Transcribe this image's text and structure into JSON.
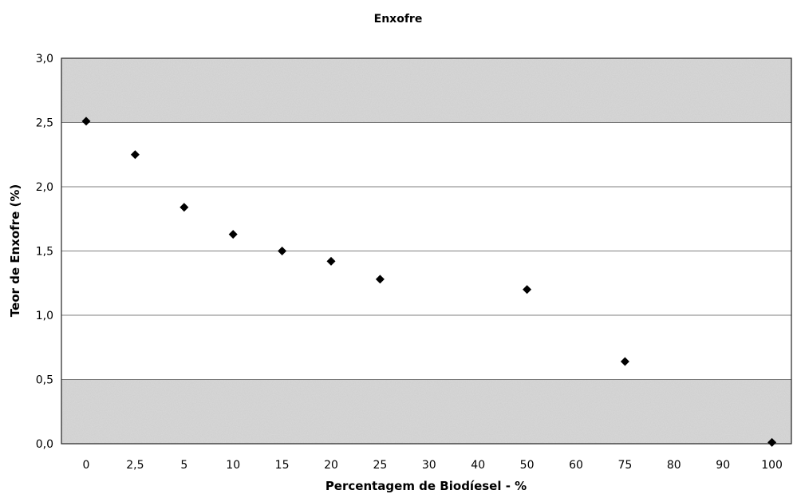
{
  "chart_data": {
    "type": "scatter",
    "title": "Enxofre",
    "xlabel": "Percentagem de Biodíesel - %",
    "ylabel": "Teor de Enxofre (%)",
    "categories": [
      "0",
      "2,5",
      "5",
      "10",
      "15",
      "20",
      "25",
      "30",
      "40",
      "50",
      "60",
      "75",
      "80",
      "90",
      "100"
    ],
    "y_ticks": [
      "0,0",
      "0,5",
      "1,0",
      "1,5",
      "2,0",
      "2,5",
      "3,0"
    ],
    "ylim": [
      0,
      3.0
    ],
    "grid": true,
    "series": [
      {
        "points": [
          {
            "x": "0",
            "y": 2.51
          },
          {
            "x": "2,5",
            "y": 2.25
          },
          {
            "x": "5",
            "y": 1.84
          },
          {
            "x": "10",
            "y": 1.63
          },
          {
            "x": "15",
            "y": 1.5
          },
          {
            "x": "20",
            "y": 1.42
          },
          {
            "x": "25",
            "y": 1.28
          },
          {
            "x": "50",
            "y": 1.2
          },
          {
            "x": "75",
            "y": 0.64
          },
          {
            "x": "100",
            "y": 0.01
          }
        ]
      }
    ],
    "colors": {
      "marker": "#000000",
      "band": "#d9d9d9",
      "band_alt": "#ffffff",
      "grid": "#555555"
    }
  }
}
